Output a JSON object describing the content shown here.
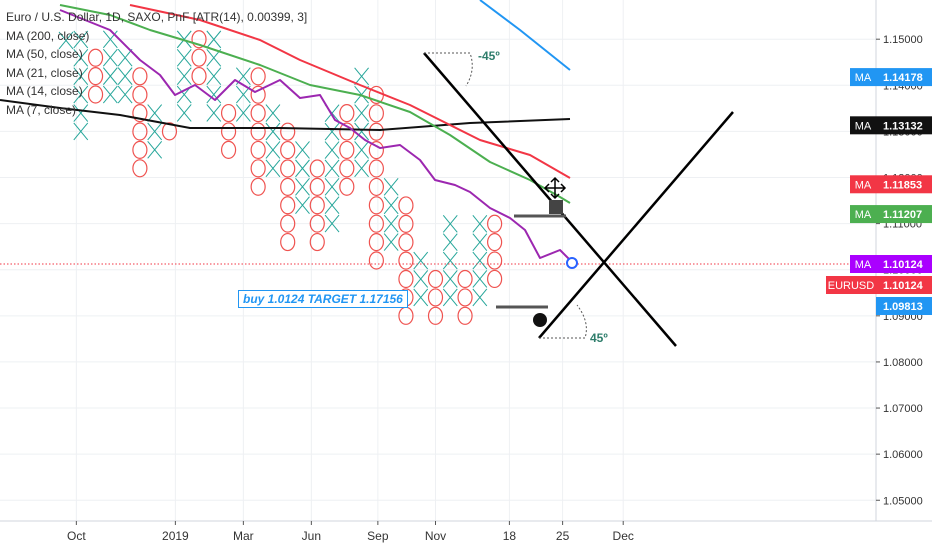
{
  "chart_data": {
    "type": "pnf",
    "title": "Euro / U.S. Dollar, 1D, SAXO, PnF [ATR(14), 0.00399, 3]",
    "legend": [
      "MA (200, close)",
      "MA (50, close)",
      "MA (21, close)",
      "MA (14, close)",
      "MA (7, close)"
    ],
    "y_axis": {
      "min": 1.0455,
      "max": 1.1585,
      "ticks": [
        "1.15000",
        "1.14000",
        "1.13000",
        "1.12000",
        "1.11000",
        "1.10000",
        "1.09000",
        "1.08000",
        "1.07000",
        "1.06000",
        "1.05000"
      ],
      "tick_values": [
        1.15,
        1.14,
        1.13,
        1.12,
        1.11,
        1.1,
        1.09,
        1.08,
        1.07,
        1.06,
        1.05
      ]
    },
    "x_axis": {
      "labels": [
        "Oct",
        "2019",
        "Mar",
        "Jun",
        "Sep",
        "Nov",
        "18",
        "25",
        "Dec"
      ],
      "label_col": [
        0.7,
        7.4,
        12,
        16.6,
        21.1,
        25,
        30,
        33.6,
        37.7
      ]
    },
    "box_size": 0.00399,
    "first_column_box": 1.14972,
    "columns": [
      {
        "type": "X",
        "from": 1.14972,
        "to": 1.15,
        "col": 0
      },
      {
        "type": "X",
        "from": 1.13,
        "to": 1.15,
        "col": 1
      },
      {
        "type": "O",
        "from": 1.146,
        "to": 1.138,
        "col": 2
      },
      {
        "type": "X",
        "from": 1.138,
        "to": 1.15,
        "col": 3
      },
      {
        "type": "X",
        "from": 1.138,
        "to": 1.146,
        "col": 4
      },
      {
        "type": "O",
        "from": 1.142,
        "to": 1.122,
        "col": 5
      },
      {
        "type": "X",
        "from": 1.126,
        "to": 1.134,
        "col": 6
      },
      {
        "type": "O",
        "from": 1.13,
        "to": 1.13,
        "col": 7
      },
      {
        "type": "X",
        "from": 1.134,
        "to": 1.15,
        "col": 8
      },
      {
        "type": "O",
        "from": 1.15,
        "to": 1.142,
        "col": 9
      },
      {
        "type": "X",
        "from": 1.134,
        "to": 1.15,
        "col": 10
      },
      {
        "type": "O",
        "from": 1.134,
        "to": 1.126,
        "col": 11
      },
      {
        "type": "X",
        "from": 1.134,
        "to": 1.142,
        "col": 12
      },
      {
        "type": "O",
        "from": 1.142,
        "to": 1.118,
        "col": 13
      },
      {
        "type": "X",
        "from": 1.122,
        "to": 1.134,
        "col": 14
      },
      {
        "type": "O",
        "from": 1.13,
        "to": 1.106,
        "col": 15
      },
      {
        "type": "X",
        "from": 1.114,
        "to": 1.126,
        "col": 16
      },
      {
        "type": "O",
        "from": 1.122,
        "to": 1.106,
        "col": 17
      },
      {
        "type": "X",
        "from": 1.11,
        "to": 1.134,
        "col": 18
      },
      {
        "type": "O",
        "from": 1.134,
        "to": 1.118,
        "col": 19
      },
      {
        "type": "X",
        "from": 1.122,
        "to": 1.142,
        "col": 20
      },
      {
        "type": "O",
        "from": 1.138,
        "to": 1.102,
        "col": 21
      },
      {
        "type": "X",
        "from": 1.106,
        "to": 1.118,
        "col": 22
      },
      {
        "type": "O",
        "from": 1.114,
        "to": 1.09,
        "col": 23
      },
      {
        "type": "X",
        "from": 1.094,
        "to": 1.102,
        "col": 24
      },
      {
        "type": "O",
        "from": 1.098,
        "to": 1.09,
        "col": 25
      },
      {
        "type": "X",
        "from": 1.094,
        "to": 1.11,
        "col": 26
      },
      {
        "type": "O",
        "from": 1.098,
        "to": 1.09,
        "col": 27
      },
      {
        "type": "X",
        "from": 1.094,
        "to": 1.11,
        "col": 28
      },
      {
        "type": "O",
        "from": 1.11,
        "to": 1.098,
        "col": 29
      }
    ],
    "moving_averages": [
      {
        "name": "MA (200, close)",
        "color": "#2196f3",
        "value": "1.14178"
      },
      {
        "name": "MA (7, close)",
        "color": "#111111",
        "value": "1.13132"
      },
      {
        "name": "MA (50, close)",
        "color": "#f23645",
        "value": "1.11853"
      },
      {
        "name": "MA (21, close)",
        "color": "#4caf50",
        "value": "1.11207"
      },
      {
        "name": "MA (14, close)",
        "color": "#9c27b0",
        "value": "1.10124"
      }
    ],
    "price_labels": [
      {
        "prefix": "MA",
        "value": "1.14178",
        "color": "#2196f3"
      },
      {
        "prefix": "MA",
        "value": "1.13132",
        "color": "#111111"
      },
      {
        "prefix": "MA",
        "value": "1.11853",
        "color": "#f23645"
      },
      {
        "prefix": "MA",
        "value": "1.11207",
        "color": "#4caf50"
      },
      {
        "prefix": "MA",
        "value": "1.10124",
        "color": "#aa00ff"
      },
      {
        "prefix": "EURUSD",
        "value": "1.10124",
        "color": "#f23645"
      },
      {
        "prefix": "",
        "value": "1.09813",
        "color": "#2196f3"
      }
    ],
    "current_price": 1.10124,
    "annotations": {
      "angle_top": "-45º",
      "angle_bottom": "45º",
      "note": "buy 1.0124 TARGET 1.17156"
    }
  }
}
